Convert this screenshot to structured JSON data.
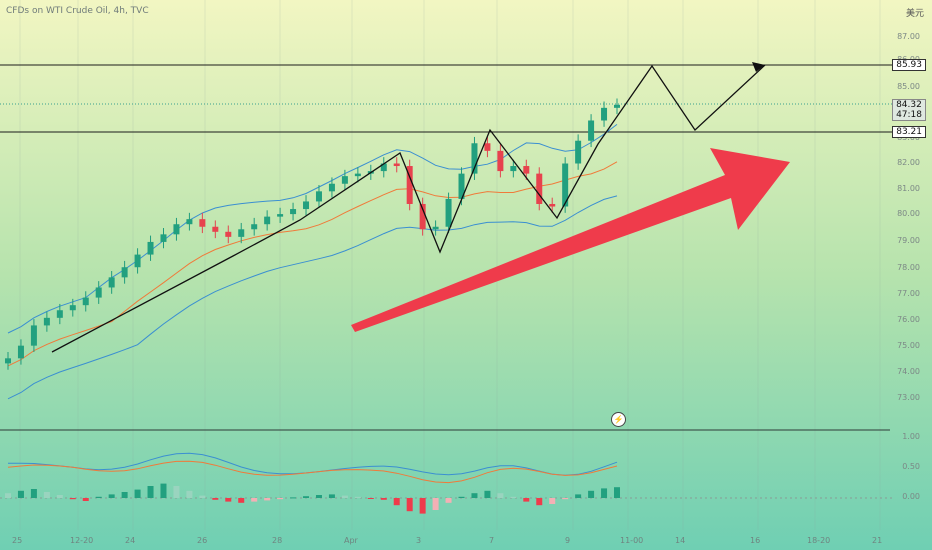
{
  "header": {
    "title": "CFDs on WTI Crude Oil, 4h, TVC",
    "currency": "美元"
  },
  "chart_data": [
    {
      "type": "candlestick",
      "title": "CFDs on WTI Crude Oil, 4h, TVC",
      "yticks": [
        "87.00",
        "86.00",
        "85.00",
        "83.00",
        "82.00",
        "81.00",
        "80.00",
        "79.00",
        "78.00",
        "77.00",
        "76.00",
        "75.00",
        "74.00",
        "73.00"
      ],
      "xticks": [
        "25",
        "12-20",
        "24",
        "26",
        "28",
        "Apr",
        "3",
        "7",
        "9",
        "11-00",
        "14",
        "16",
        "18-20",
        "21"
      ],
      "horizontal_levels": [
        85.93,
        83.21
      ],
      "last_price": {
        "value": "84.32",
        "countdown": "47:18"
      },
      "level_labels": [
        "85.93",
        "83.21"
      ],
      "close_path": [
        74.3,
        74.8,
        75.6,
        75.9,
        76.2,
        76.4,
        76.7,
        77.1,
        77.5,
        77.9,
        78.4,
        78.9,
        79.2,
        79.6,
        79.8,
        79.5,
        79.3,
        79.1,
        79.4,
        79.6,
        79.9,
        80.0,
        80.2,
        80.5,
        80.9,
        81.2,
        81.5,
        81.6,
        81.7,
        82.0,
        81.9,
        80.4,
        79.4,
        79.5,
        80.6,
        81.6,
        82.8,
        82.5,
        81.7,
        81.9,
        81.6,
        80.4,
        80.3,
        82.0,
        82.9,
        83.7,
        84.2,
        84.32
      ],
      "bollinger": "visible",
      "moving_average": "visible",
      "projection_path": "visible",
      "trend_arrow": "upward"
    },
    {
      "type": "histogram",
      "name": "MACD",
      "yticks": [
        "1.00",
        "0.50",
        "0.00"
      ],
      "values": [
        0.08,
        0.12,
        0.15,
        0.1,
        0.05,
        -0.02,
        -0.05,
        0.02,
        0.06,
        0.1,
        0.14,
        0.2,
        0.24,
        0.2,
        0.12,
        0.04,
        -0.03,
        -0.06,
        -0.08,
        -0.06,
        -0.04,
        -0.02,
        0.01,
        0.03,
        0.05,
        0.06,
        0.04,
        0.02,
        -0.01,
        -0.03,
        -0.12,
        -0.22,
        -0.26,
        -0.2,
        -0.08,
        0.02,
        0.08,
        0.12,
        0.08,
        0.02,
        -0.06,
        -0.12,
        -0.1,
        -0.02,
        0.06,
        0.12,
        0.16,
        0.18
      ]
    }
  ]
}
